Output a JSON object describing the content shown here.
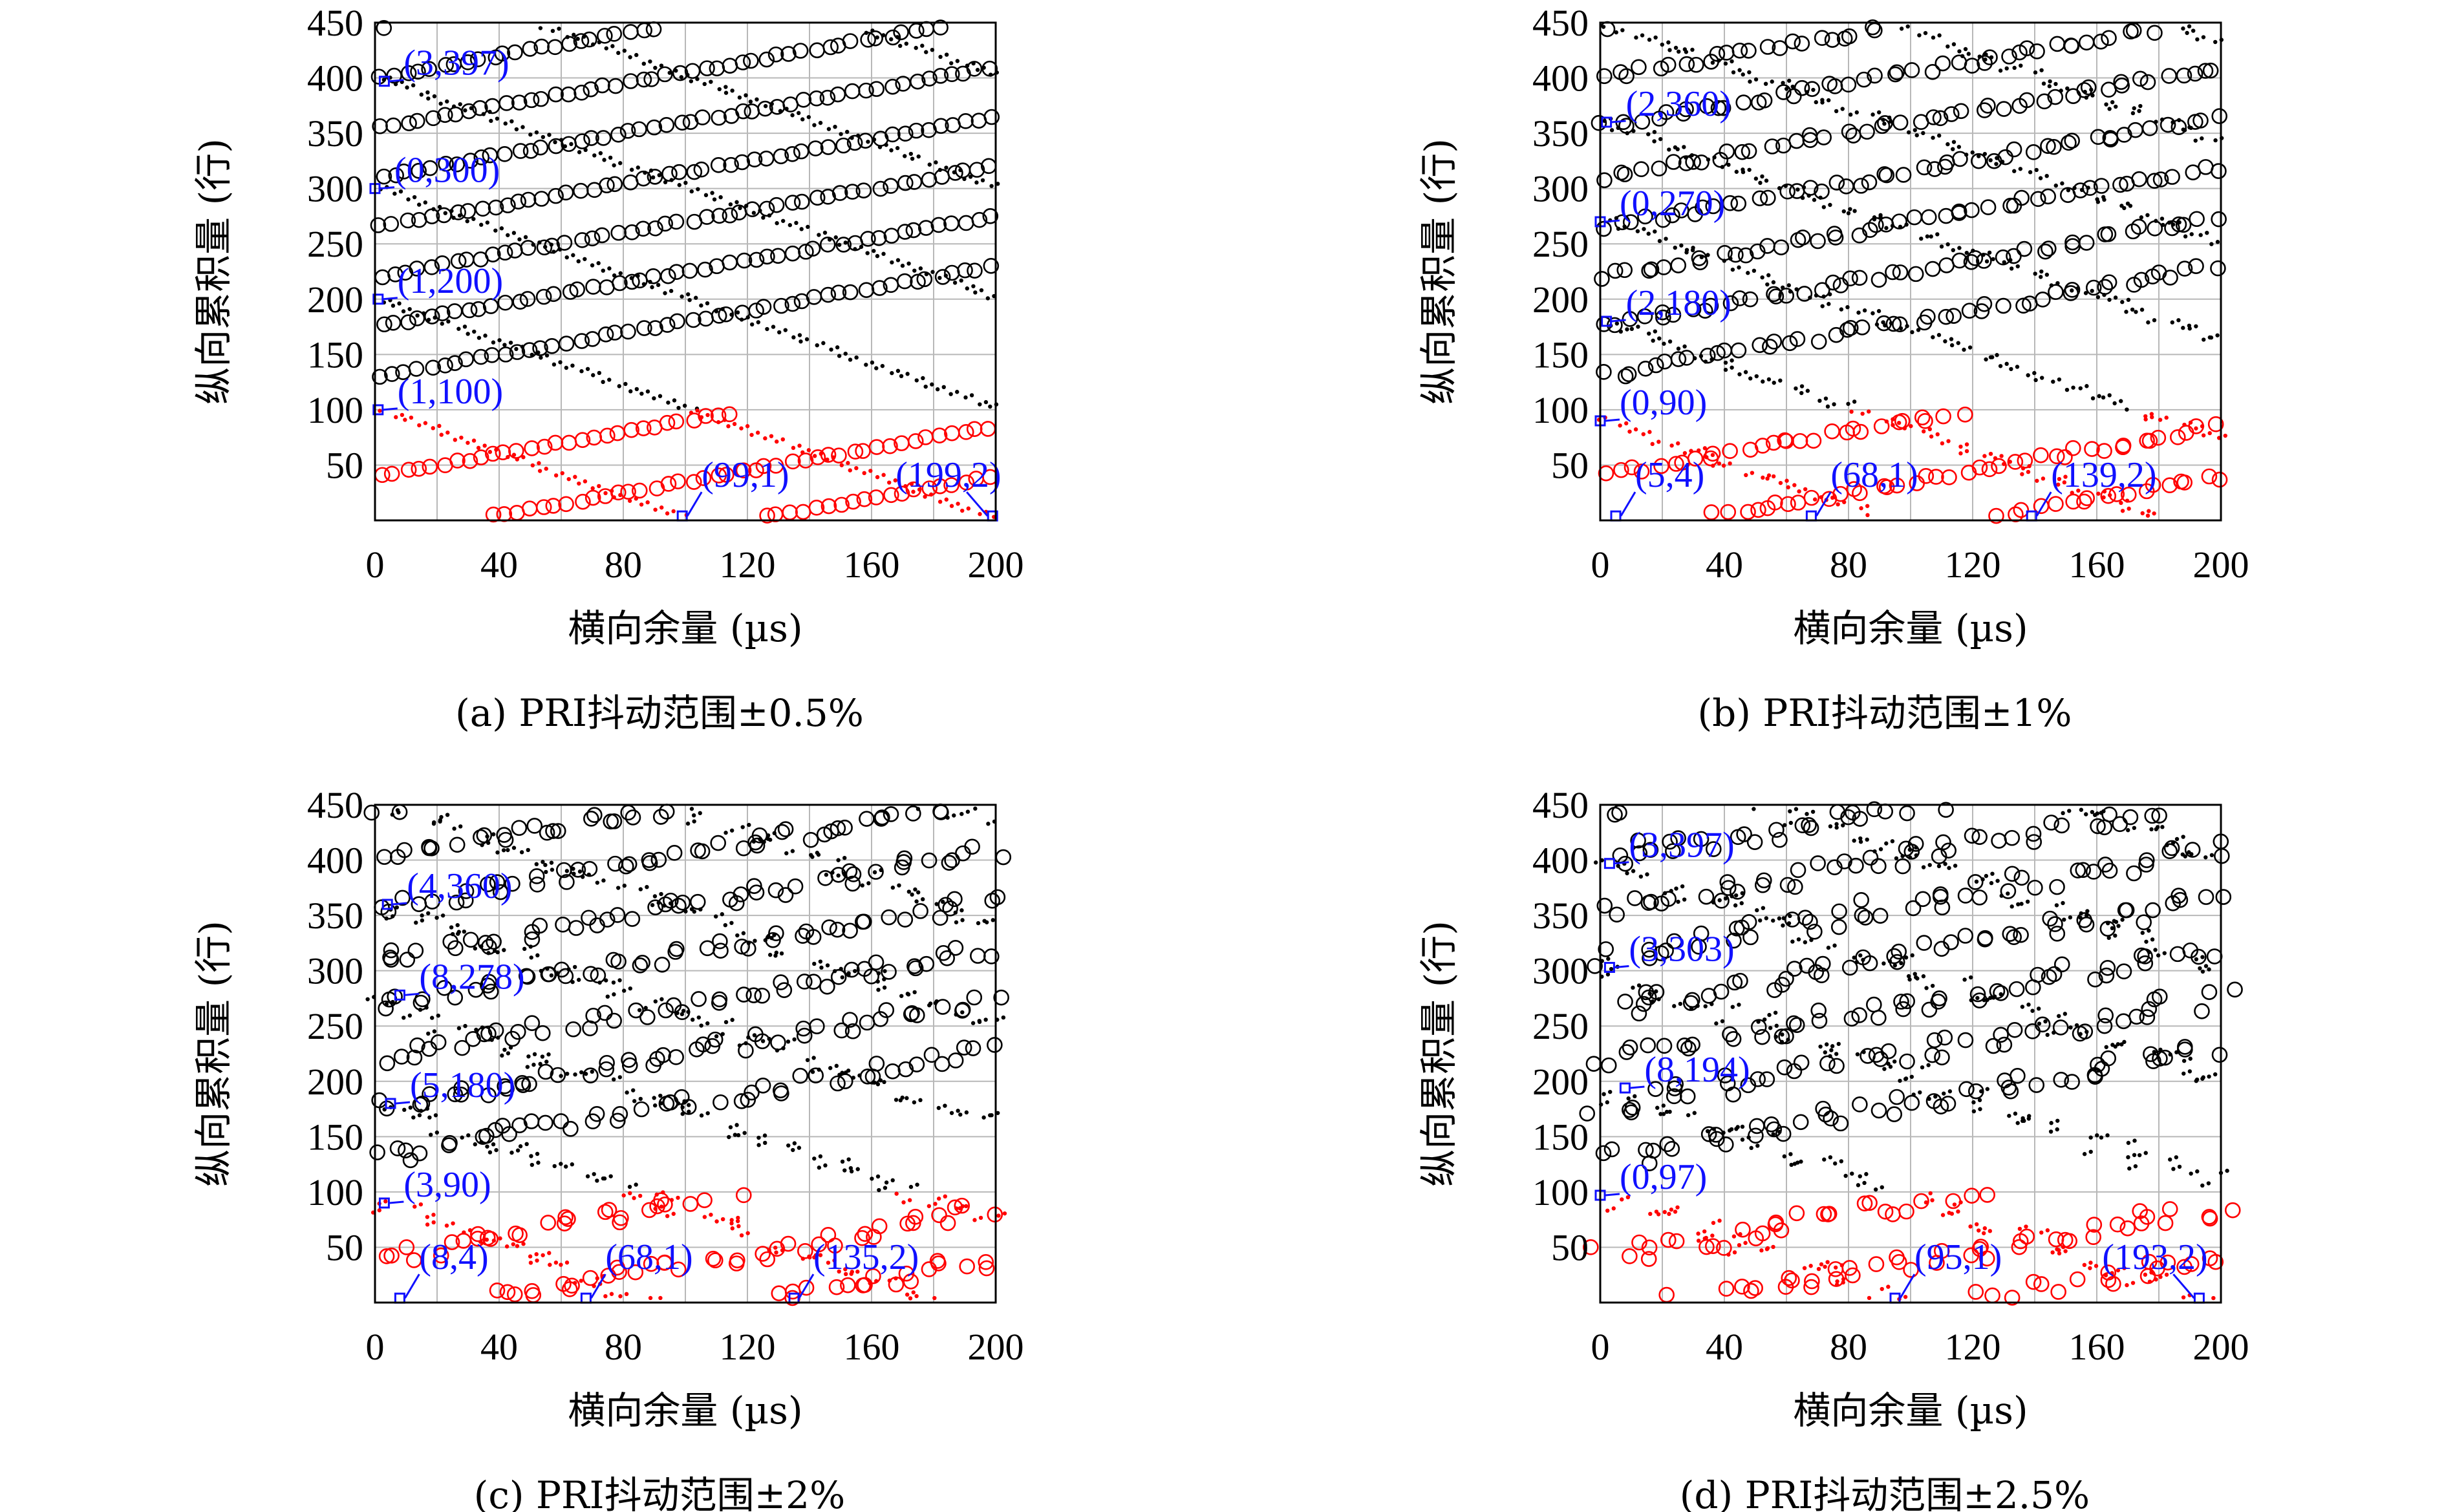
{
  "chart_data": [
    {
      "type": "scatter",
      "caption": "(a) PRI抖动范围±0.5%",
      "xlabel": "横向余量 (µs)",
      "ylabel": "纵向累积量 (行)",
      "xlim": [
        0,
        200
      ],
      "ylim": [
        0,
        450
      ],
      "xticks": [
        "0",
        "40",
        "80",
        "120",
        "160",
        "200"
      ],
      "yticks": [
        "50",
        "100",
        "150",
        "200",
        "250",
        "300",
        "350",
        "400",
        "450"
      ],
      "grid": true,
      "colors": {
        "black_series": "#000000",
        "red_series": "#ff0000",
        "annotation": "#1010ff"
      },
      "jitter": 0.2,
      "series": [
        {
          "kind": "circles",
          "color": "black",
          "slope": 0.5,
          "step": 4,
          "offsets": [
            130,
            175,
            220,
            265,
            310,
            355,
            400,
            445
          ]
        },
        {
          "kind": "dots",
          "color": "black",
          "slope": -1.0,
          "step": 4,
          "offsets": [
            200,
            300,
            400,
            500,
            600
          ]
        },
        {
          "kind": "circles",
          "color": "red",
          "slope": 0.5,
          "step": 4,
          "offsets": [
            -60,
            -15,
            40
          ]
        },
        {
          "kind": "dots",
          "color": "red",
          "slope": -1.0,
          "step": 4,
          "offsets": [
            100,
            200
          ]
        }
      ],
      "annotations": [
        {
          "text": "(3,397)",
          "x": 3,
          "y": 397
        },
        {
          "text": "(0,300)",
          "x": 0,
          "y": 300
        },
        {
          "text": "(1,200)",
          "x": 1,
          "y": 200
        },
        {
          "text": "(1,100)",
          "x": 1,
          "y": 100
        },
        {
          "text": "(99,1)",
          "x": 99,
          "y": 1
        },
        {
          "text": "(199,2)",
          "x": 199,
          "y": 2
        }
      ]
    },
    {
      "type": "scatter",
      "caption": "(b) PRI抖动范围±1%",
      "xlabel": "横向余量 (µs)",
      "ylabel": "纵向累积量 (行)",
      "xlim": [
        0,
        200
      ],
      "ylim": [
        0,
        450
      ],
      "xticks": [
        "0",
        "40",
        "80",
        "120",
        "160",
        "200"
      ],
      "yticks": [
        "50",
        "100",
        "150",
        "200",
        "250",
        "300",
        "350",
        "400",
        "450"
      ],
      "grid": true,
      "colors": {
        "black_series": "#000000",
        "red_series": "#ff0000",
        "annotation": "#1010ff"
      },
      "jitter": 0.5,
      "series": [
        {
          "kind": "circles",
          "color": "black",
          "slope": 0.5,
          "step": 4,
          "offsets": [
            130,
            175,
            220,
            265,
            310,
            355,
            400,
            445
          ]
        },
        {
          "kind": "dots",
          "color": "black",
          "slope": -1.0,
          "step": 4,
          "offsets": [
            180,
            270,
            360,
            450,
            540,
            630
          ]
        },
        {
          "kind": "circles",
          "color": "red",
          "slope": 0.5,
          "step": 4,
          "offsets": [
            -60,
            -15,
            40
          ]
        },
        {
          "kind": "dots",
          "color": "red",
          "slope": -1.0,
          "step": 4,
          "offsets": [
            90,
            180,
            270
          ]
        }
      ],
      "annotations": [
        {
          "text": "(2,360)",
          "x": 2,
          "y": 360
        },
        {
          "text": "(0,270)",
          "x": 0,
          "y": 270
        },
        {
          "text": "(2,180)",
          "x": 2,
          "y": 180
        },
        {
          "text": "(0,90)",
          "x": 0,
          "y": 90
        },
        {
          "text": "(5,4)",
          "x": 5,
          "y": 4
        },
        {
          "text": "(68,1)",
          "x": 68,
          "y": 1
        },
        {
          "text": "(139,2)",
          "x": 139,
          "y": 2
        }
      ]
    },
    {
      "type": "scatter",
      "caption": "(c) PRI抖动范围±2%",
      "xlabel": "横向余量 (µs)",
      "ylabel": "纵向累积量 (行)",
      "xlim": [
        0,
        200
      ],
      "ylim": [
        0,
        450
      ],
      "xticks": [
        "0",
        "40",
        "80",
        "120",
        "160",
        "200"
      ],
      "yticks": [
        "50",
        "100",
        "150",
        "200",
        "250",
        "300",
        "350",
        "400",
        "450"
      ],
      "grid": true,
      "colors": {
        "black_series": "#000000",
        "red_series": "#ff0000",
        "annotation": "#1010ff"
      },
      "jitter": 1.0,
      "series": [
        {
          "kind": "circles",
          "color": "black",
          "slope": 0.5,
          "step": 4,
          "offsets": [
            130,
            175,
            220,
            265,
            310,
            355,
            400,
            445
          ]
        },
        {
          "kind": "dots",
          "color": "black",
          "slope": -1.0,
          "step": 4,
          "offsets": [
            180,
            270,
            360,
            450,
            540,
            630
          ]
        },
        {
          "kind": "circles",
          "color": "red",
          "slope": 0.5,
          "step": 4,
          "offsets": [
            -60,
            -15,
            40
          ]
        },
        {
          "kind": "dots",
          "color": "red",
          "slope": -1.0,
          "step": 4,
          "offsets": [
            90,
            180,
            270
          ]
        }
      ],
      "annotations": [
        {
          "text": "(4,360)",
          "x": 4,
          "y": 360
        },
        {
          "text": "(8,278)",
          "x": 8,
          "y": 278
        },
        {
          "text": "(5,180)",
          "x": 5,
          "y": 180
        },
        {
          "text": "(3,90)",
          "x": 3,
          "y": 90
        },
        {
          "text": "(8,4)",
          "x": 8,
          "y": 4
        },
        {
          "text": "(68,1)",
          "x": 68,
          "y": 1
        },
        {
          "text": "(135,2)",
          "x": 135,
          "y": 2
        }
      ]
    },
    {
      "type": "scatter",
      "caption": "(d) PRI抖动范围±2.5%",
      "xlabel": "横向余量 (µs)",
      "ylabel": "纵向累积量 (行)",
      "xlim": [
        0,
        200
      ],
      "ylim": [
        0,
        450
      ],
      "xticks": [
        "0",
        "40",
        "80",
        "120",
        "160",
        "200"
      ],
      "yticks": [
        "50",
        "100",
        "150",
        "200",
        "250",
        "300",
        "350",
        "400",
        "450"
      ],
      "grid": true,
      "colors": {
        "black_series": "#000000",
        "red_series": "#ff0000",
        "annotation": "#1010ff"
      },
      "jitter": 1.3,
      "series": [
        {
          "kind": "circles",
          "color": "black",
          "slope": 0.5,
          "step": 4,
          "offsets": [
            130,
            175,
            220,
            265,
            310,
            355,
            400,
            445
          ]
        },
        {
          "kind": "dots",
          "color": "black",
          "slope": -1.0,
          "step": 4,
          "offsets": [
            194,
            303,
            397,
            500,
            600
          ]
        },
        {
          "kind": "circles",
          "color": "red",
          "slope": 0.5,
          "step": 4,
          "offsets": [
            -60,
            -15,
            40
          ]
        },
        {
          "kind": "dots",
          "color": "red",
          "slope": -1.0,
          "step": 4,
          "offsets": [
            97,
            194
          ]
        }
      ],
      "annotations": [
        {
          "text": "(3,397)",
          "x": 3,
          "y": 397
        },
        {
          "text": "(3,303)",
          "x": 3,
          "y": 303
        },
        {
          "text": "(8,194)",
          "x": 8,
          "y": 194
        },
        {
          "text": "(0,97)",
          "x": 0,
          "y": 97
        },
        {
          "text": "(95,1)",
          "x": 95,
          "y": 1
        },
        {
          "text": "(193,2)",
          "x": 193,
          "y": 2
        }
      ]
    }
  ]
}
